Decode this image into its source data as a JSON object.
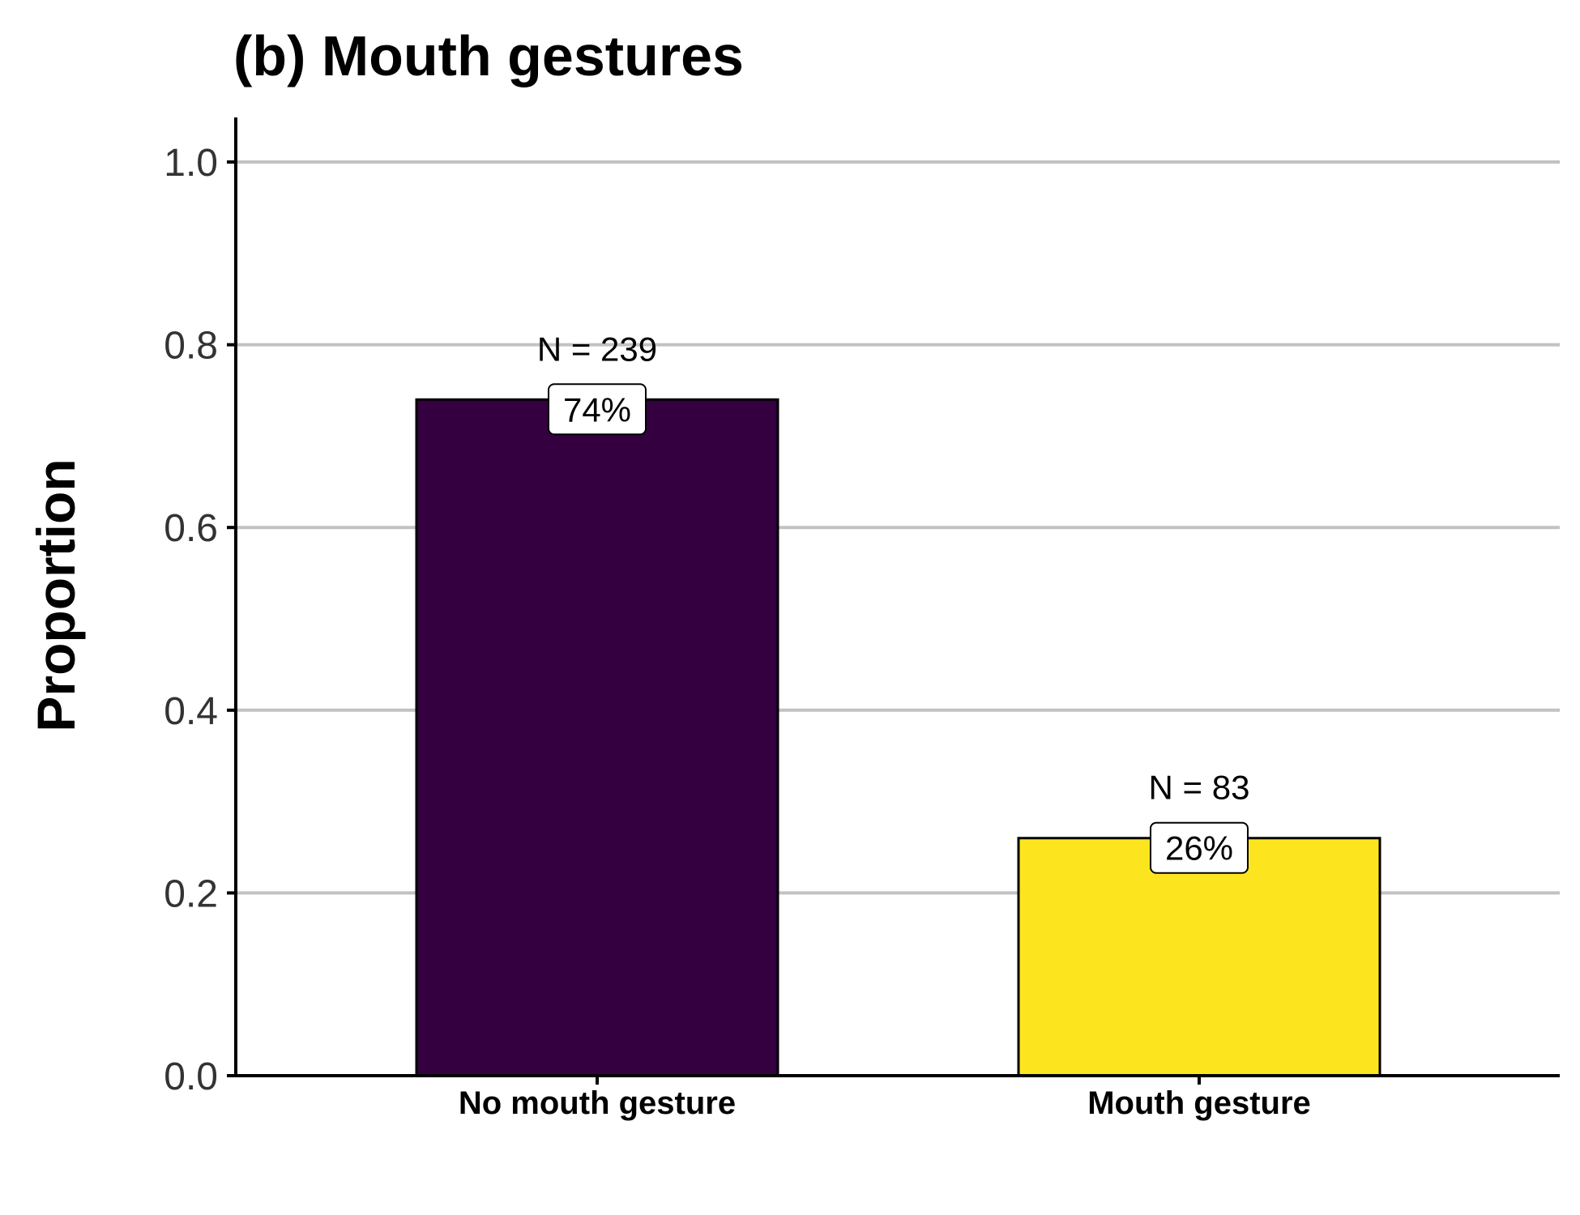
{
  "chart_data": {
    "type": "bar",
    "title": "(b) Mouth gestures",
    "xlabel": "",
    "ylabel": "Proportion",
    "ylim": [
      0,
      1.0
    ],
    "yticks": [
      0.0,
      0.2,
      0.4,
      0.6,
      0.8,
      1.0
    ],
    "ytick_labels": [
      "0.0",
      "0.2",
      "0.4",
      "0.6",
      "0.8",
      "1.0"
    ],
    "grid": "horizontal major",
    "categories": [
      "No mouth gesture",
      "Mouth gesture"
    ],
    "values": [
      0.74,
      0.26
    ],
    "count_labels": [
      "N = 239",
      "N = 83"
    ],
    "percent_labels": [
      "74%",
      "26%"
    ],
    "colors": [
      "#35003f",
      "#fce51e"
    ]
  }
}
